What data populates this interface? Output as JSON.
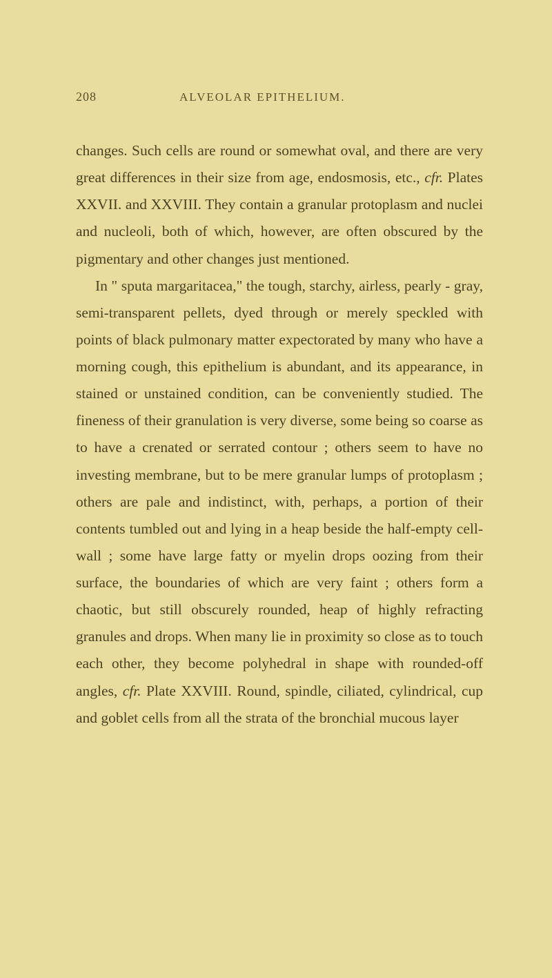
{
  "page": {
    "number": "208",
    "chapter_title": "ALVEOLAR EPITHELIUM.",
    "background_color": "#e8dd9e",
    "text_color": "#4a4220",
    "header_color": "#5a5028",
    "body_fontsize": 21.5,
    "header_fontsize": 18,
    "line_height": 1.82,
    "paragraphs": [
      {
        "segments": [
          {
            "text": "changes. Such cells are round or somewhat oval, and there are very great differences in their size from age, endosmosis, etc., ",
            "italic": false
          },
          {
            "text": "cfr.",
            "italic": true
          },
          {
            "text": " Plates XXVII. and XXVIII. They contain a granular protoplasm and nuclei and nucleoli, both of which, however, are often obscured by the pigmentary and other changes just mentioned.",
            "italic": false
          }
        ]
      },
      {
        "segments": [
          {
            "text": "In \" sputa margaritacea,\" the tough, starchy, airless, pearly - gray, semi-transparent pellets, dyed through or merely speckled with points of black pulmonary matter expectorated by many who have a morning cough, this epithelium is abundant, and its appearance, in stained or unstained condition, can be conveniently studied. The fineness of their granulation is very diverse, some being so coarse as to have a crenated or serrated contour ; others seem to have no investing membrane, but to be mere granular lumps of protoplasm ; others are pale and indistinct, with, perhaps, a portion of their contents tumbled out and lying in a heap beside the half-empty cell-wall ; some have large fatty or myelin drops oozing from their surface, the boundaries of which are very faint ; others form a chaotic, but still obscurely rounded, heap of highly refracting granules and drops. When many lie in proximity so close as to touch each other, they become polyhedral in shape with rounded-off angles, ",
            "italic": false
          },
          {
            "text": "cfr.",
            "italic": true
          },
          {
            "text": " Plate XXVIII. Round, spindle, ciliated, cylindrical, cup and goblet cells from all the strata of the bronchial mucous layer",
            "italic": false
          }
        ]
      }
    ]
  }
}
